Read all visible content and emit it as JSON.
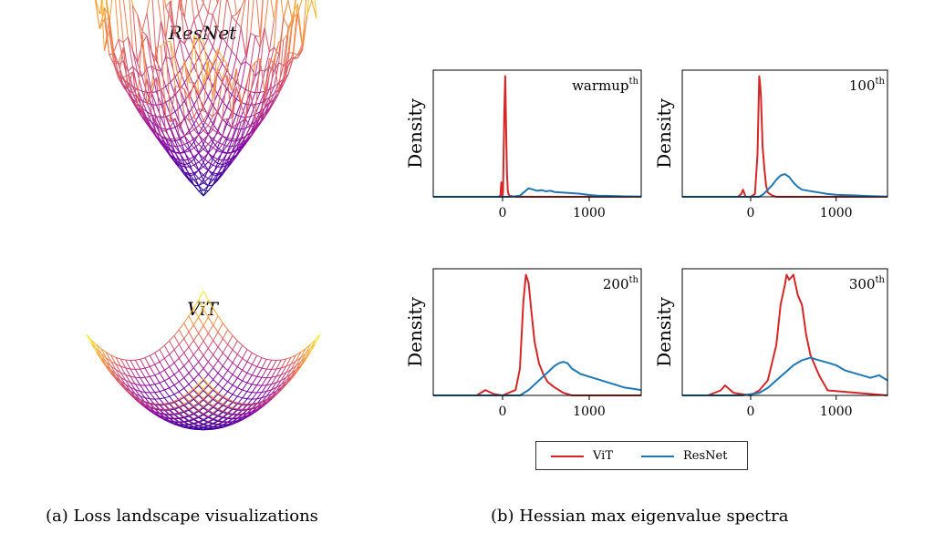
{
  "landscape": {
    "resnet_title": "ResNet",
    "vit_title": "ViT",
    "caption": "(a) Loss landscape visualizations"
  },
  "spectra_caption": "(b) Hessian max eigenvalue spectra",
  "colors": {
    "vit": "#d62728",
    "resnet": "#1f77b4"
  },
  "legend": {
    "vit_label": "ViT",
    "resnet_label": "ResNet"
  },
  "chart_data": [
    {
      "type": "line",
      "title": "warmup",
      "title_sup": "th",
      "ylabel": "Density",
      "xticks": [
        0,
        1000
      ],
      "xlim": [
        -800,
        1600
      ],
      "series": [
        {
          "name": "ViT",
          "x": [
            -800,
            -50,
            -25,
            -15,
            -5,
            0,
            5,
            20,
            30,
            40,
            50,
            60,
            70,
            80,
            100,
            150,
            1600
          ],
          "y": [
            0,
            0,
            0.01,
            0.12,
            0.03,
            0,
            0.05,
            0.7,
            1.0,
            0.6,
            0.2,
            0.05,
            0.02,
            0.01,
            0.005,
            0,
            0
          ]
        },
        {
          "name": "ResNet",
          "x": [
            -800,
            100,
            200,
            250,
            300,
            350,
            400,
            450,
            500,
            550,
            600,
            700,
            800,
            900,
            1000,
            1100,
            1200,
            1400,
            1600
          ],
          "y": [
            0,
            0,
            0.01,
            0.04,
            0.07,
            0.06,
            0.05,
            0.055,
            0.045,
            0.05,
            0.04,
            0.035,
            0.03,
            0.025,
            0.015,
            0.01,
            0.008,
            0.004,
            0.002
          ]
        }
      ]
    },
    {
      "type": "line",
      "title": "100",
      "title_sup": "th",
      "ylabel": "Density",
      "xticks": [
        0,
        1000
      ],
      "xlim": [
        -800,
        1600
      ],
      "series": [
        {
          "name": "ViT",
          "x": [
            -800,
            -150,
            -110,
            -90,
            -60,
            0,
            50,
            80,
            100,
            110,
            120,
            140,
            160,
            180,
            200,
            250,
            300,
            1600
          ],
          "y": [
            0,
            0,
            0.02,
            0.05,
            0,
            0,
            0.02,
            0.3,
            0.85,
            0.8,
            0.7,
            0.35,
            0.2,
            0.08,
            0.03,
            0.01,
            0,
            0
          ]
        },
        {
          "name": "ResNet",
          "x": [
            -800,
            100,
            150,
            200,
            250,
            300,
            350,
            400,
            450,
            500,
            550,
            600,
            700,
            800,
            900,
            1000,
            1100,
            1200,
            1400,
            1600
          ],
          "y": [
            0,
            0,
            0.02,
            0.05,
            0.08,
            0.12,
            0.15,
            0.16,
            0.14,
            0.1,
            0.07,
            0.05,
            0.04,
            0.03,
            0.02,
            0.015,
            0.012,
            0.01,
            0.005,
            0.002
          ]
        }
      ]
    },
    {
      "type": "line",
      "title": "200",
      "title_sup": "th",
      "ylabel": "Density",
      "xticks": [
        0,
        1000
      ],
      "xlim": [
        -800,
        1600
      ],
      "series": [
        {
          "name": "ViT",
          "x": [
            -800,
            -300,
            -250,
            -200,
            -100,
            0,
            150,
            200,
            240,
            270,
            300,
            330,
            370,
            420,
            470,
            520,
            600,
            700,
            800,
            1600
          ],
          "y": [
            0,
            0,
            0.01,
            0.02,
            0.005,
            0,
            0.02,
            0.1,
            0.35,
            0.45,
            0.42,
            0.32,
            0.2,
            0.12,
            0.08,
            0.05,
            0.03,
            0.01,
            0,
            0
          ]
        },
        {
          "name": "ResNet",
          "x": [
            -800,
            200,
            300,
            400,
            500,
            600,
            650,
            700,
            750,
            800,
            850,
            900,
            950,
            1000,
            1100,
            1200,
            1300,
            1400,
            1500,
            1600
          ],
          "y": [
            0,
            0,
            0.02,
            0.05,
            0.08,
            0.11,
            0.12,
            0.125,
            0.12,
            0.1,
            0.09,
            0.08,
            0.075,
            0.07,
            0.06,
            0.05,
            0.04,
            0.03,
            0.025,
            0.02
          ]
        }
      ]
    },
    {
      "type": "line",
      "title": "300",
      "title_sup": "th",
      "ylabel": "Density",
      "xticks": [
        0,
        1000
      ],
      "xlim": [
        -800,
        1600
      ],
      "series": [
        {
          "name": "ViT",
          "x": [
            -800,
            -500,
            -350,
            -300,
            -200,
            0,
            100,
            200,
            300,
            350,
            400,
            420,
            450,
            500,
            550,
            600,
            650,
            700,
            800,
            900,
            1600
          ],
          "y": [
            0,
            0,
            0.01,
            0.02,
            0.005,
            0,
            0.01,
            0.03,
            0.1,
            0.18,
            0.22,
            0.24,
            0.23,
            0.24,
            0.2,
            0.18,
            0.12,
            0.08,
            0.04,
            0.01,
            0
          ]
        },
        {
          "name": "ResNet",
          "x": [
            -800,
            -100,
            100,
            200,
            300,
            400,
            500,
            600,
            700,
            800,
            900,
            1000,
            1100,
            1200,
            1300,
            1400,
            1500,
            1600
          ],
          "y": [
            0,
            0,
            0.005,
            0.015,
            0.03,
            0.045,
            0.06,
            0.07,
            0.075,
            0.07,
            0.065,
            0.06,
            0.05,
            0.045,
            0.04,
            0.035,
            0.04,
            0.03
          ]
        }
      ]
    }
  ]
}
